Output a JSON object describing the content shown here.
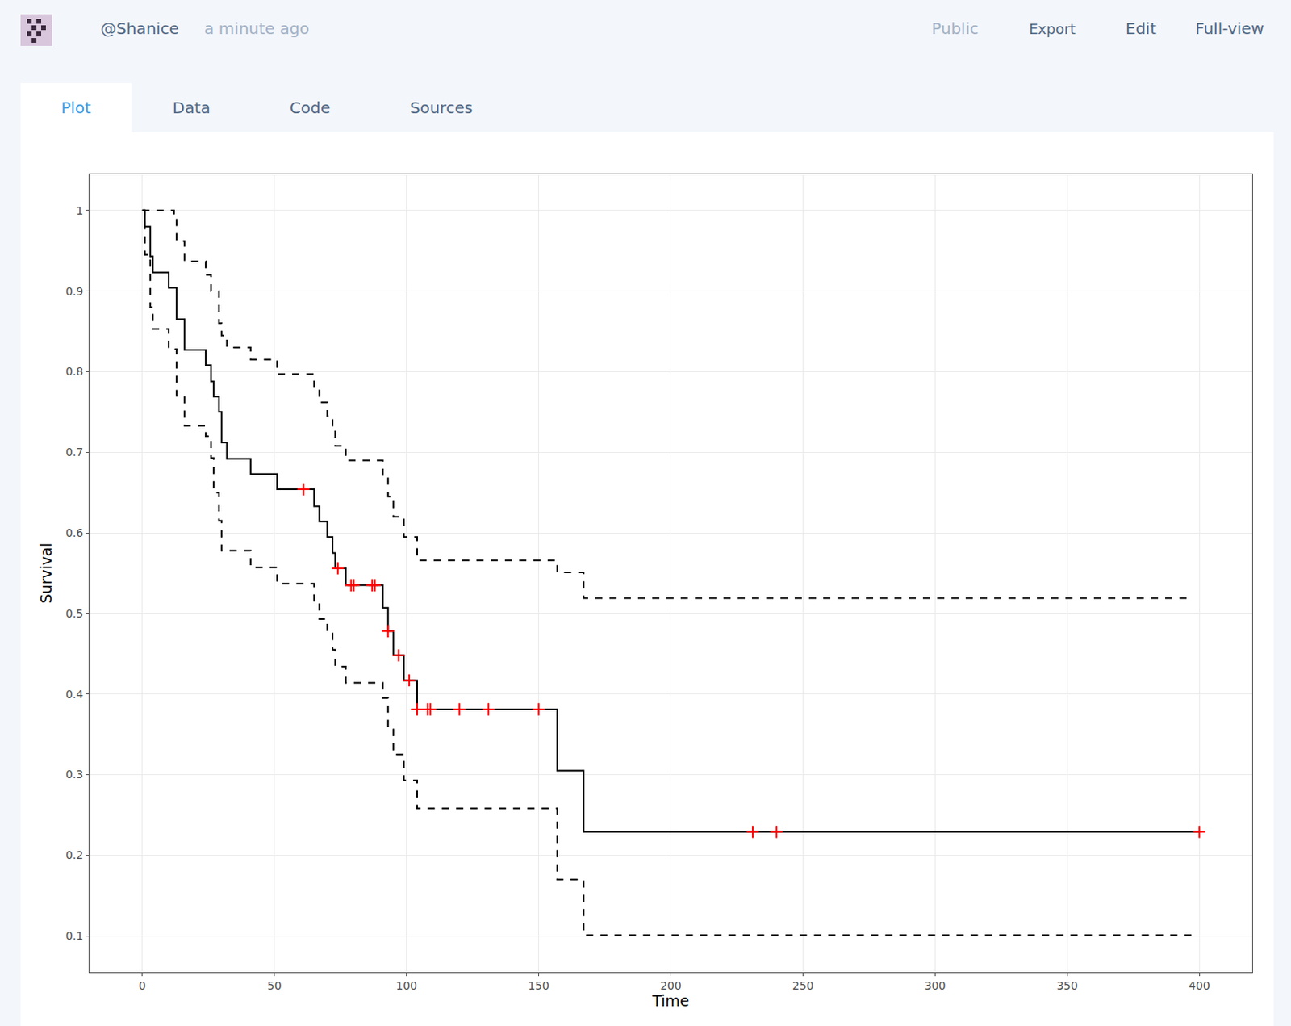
{
  "page": {
    "user": "@Shanice",
    "time": "a minute ago",
    "actions": [
      "Public",
      "Export",
      "Edit",
      "Full-view"
    ],
    "tabs": [
      "Plot",
      "Data",
      "Code",
      "Sources"
    ],
    "active_tab": "Plot"
  },
  "chart_data": {
    "type": "line",
    "x_label": "Time",
    "y_label": "Survival",
    "xlim": [
      -20,
      420
    ],
    "xticks": [
      0,
      50,
      100,
      150,
      200,
      250,
      300,
      350,
      400
    ],
    "ylim": [
      0.055,
      1.045
    ],
    "yticks": [
      0.1,
      0.2,
      0.3,
      0.4,
      0.5,
      0.6,
      0.7,
      0.8,
      0.9,
      1
    ],
    "grid": true,
    "series": [
      {
        "color": "#000000",
        "line_style": "solid",
        "x": [
          0,
          1,
          3,
          4,
          10,
          13,
          16,
          24,
          26,
          27,
          29,
          30,
          32,
          41,
          51,
          65,
          67,
          70,
          72,
          73,
          77,
          91,
          93,
          95,
          99,
          104,
          157,
          167,
          400
        ],
        "values": [
          1.0,
          0.98,
          0.943,
          0.923,
          0.904,
          0.865,
          0.827,
          0.808,
          0.788,
          0.769,
          0.75,
          0.712,
          0.692,
          0.673,
          0.654,
          0.633,
          0.614,
          0.595,
          0.575,
          0.556,
          0.535,
          0.507,
          0.478,
          0.448,
          0.417,
          0.381,
          0.305,
          0.229,
          0.229
        ]
      },
      {
        "color": "#000000",
        "line_style": "dashed",
        "x": [
          0,
          12,
          13,
          16,
          24,
          26,
          29,
          30,
          32,
          41,
          51,
          65,
          67,
          70,
          72,
          73,
          77,
          91,
          93,
          95,
          99,
          104,
          157,
          167,
          397
        ],
        "values": [
          1.0,
          0.99,
          0.962,
          0.937,
          0.92,
          0.9,
          0.86,
          0.845,
          0.83,
          0.815,
          0.797,
          0.78,
          0.762,
          0.745,
          0.727,
          0.708,
          0.69,
          0.67,
          0.645,
          0.62,
          0.595,
          0.566,
          0.551,
          0.519,
          0.519
        ]
      },
      {
        "color": "#000000",
        "line_style": "dashed",
        "x": [
          0,
          1,
          3,
          4,
          10,
          13,
          16,
          24,
          26,
          27,
          29,
          30,
          41,
          51,
          65,
          67,
          70,
          72,
          73,
          77,
          91,
          93,
          95,
          99,
          104,
          157,
          167,
          397
        ],
        "values": [
          1.0,
          0.945,
          0.88,
          0.853,
          0.828,
          0.77,
          0.733,
          0.72,
          0.693,
          0.65,
          0.615,
          0.578,
          0.557,
          0.537,
          0.514,
          0.493,
          0.475,
          0.455,
          0.434,
          0.414,
          0.395,
          0.356,
          0.325,
          0.293,
          0.258,
          0.17,
          0.101,
          0.101
        ]
      },
      {
        "type": "scatter",
        "marker": "cross",
        "color": "#ff0000",
        "x": [
          61,
          74,
          79,
          80,
          87,
          88,
          93,
          97,
          101,
          104,
          108,
          109,
          120,
          131,
          150,
          231,
          240,
          400
        ],
        "values": [
          0.654,
          0.556,
          0.535,
          0.535,
          0.535,
          0.535,
          0.478,
          0.448,
          0.417,
          0.381,
          0.381,
          0.381,
          0.381,
          0.381,
          0.381,
          0.229,
          0.229,
          0.229
        ]
      }
    ]
  }
}
